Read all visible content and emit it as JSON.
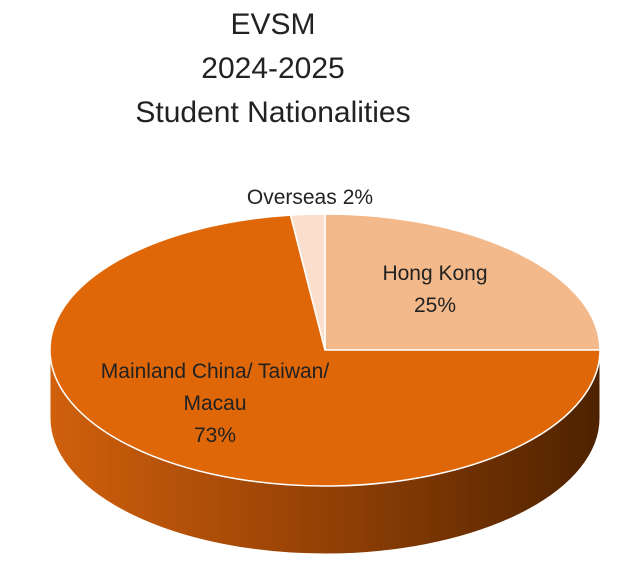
{
  "chart_data": {
    "type": "pie",
    "title": [
      "EVSM",
      "2024-2025",
      "Student Nationalities"
    ],
    "categories": [
      "Hong Kong",
      "Mainland China/ Taiwan/ Macau",
      "Overseas"
    ],
    "values": [
      25,
      73,
      2
    ],
    "value_labels": [
      "25%",
      "73%",
      "2%"
    ],
    "colors": [
      "#f4b98a",
      "#df6708",
      "#f9dfcc"
    ]
  }
}
